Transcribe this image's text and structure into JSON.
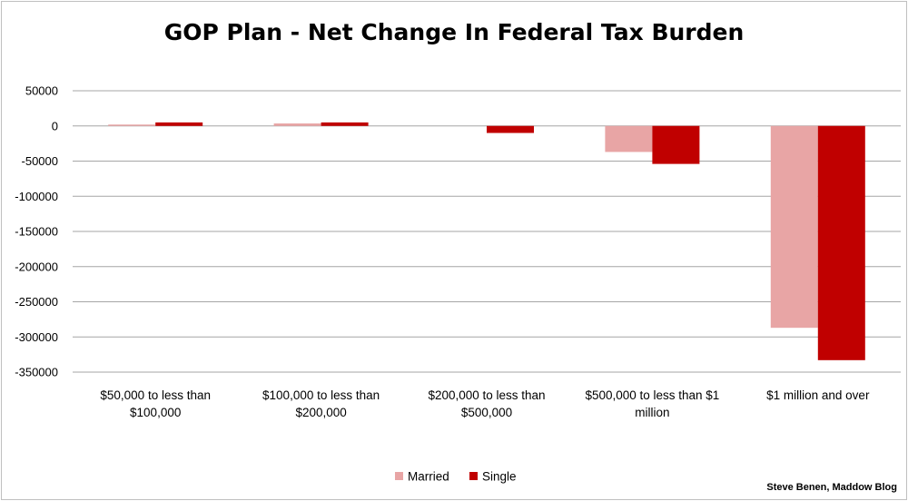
{
  "chart_data": {
    "type": "bar",
    "title": "GOP Plan - Net Change In Federal Tax Burden",
    "xlabel": "",
    "ylabel": "",
    "categories": [
      [
        "$50,000 to less than",
        "$100,000"
      ],
      [
        "$100,000 to less than",
        "$200,000"
      ],
      [
        "$200,000 to less than",
        "$500,000"
      ],
      [
        "$500,000 to less than $1",
        "million"
      ],
      [
        "$1 million and over"
      ]
    ],
    "series": [
      {
        "name": "Married",
        "color": "#e8a5a5",
        "values": [
          1500,
          3500,
          0,
          -37000,
          -287000
        ]
      },
      {
        "name": "Single",
        "color": "#c00000",
        "values": [
          5000,
          5000,
          -10000,
          -54000,
          -333000
        ]
      }
    ],
    "ylim": [
      -350000,
      50000
    ],
    "yticks": [
      50000,
      0,
      -50000,
      -100000,
      -150000,
      -200000,
      -250000,
      -300000,
      -350000
    ],
    "ytick_labels": [
      "50000",
      "0",
      "-50000",
      "-100000",
      "-150000",
      "-200000",
      "-250000",
      "-300000",
      "-350000"
    ],
    "grid": true,
    "legend_position": "bottom-center",
    "credit": "Steve Benen, Maddow Blog"
  }
}
